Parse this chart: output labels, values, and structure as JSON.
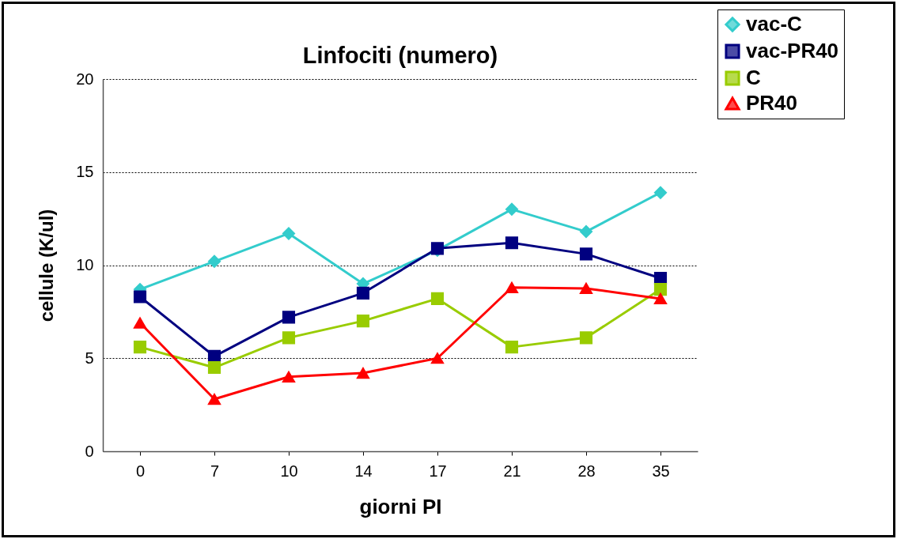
{
  "chart_data": {
    "type": "line",
    "title": "Linfociti (numero)",
    "xlabel": "giorni PI",
    "ylabel": "cellule (K/ul)",
    "categories": [
      "0",
      "7",
      "10",
      "14",
      "17",
      "21",
      "28",
      "35"
    ],
    "ylim": [
      0,
      20
    ],
    "yticks": [
      0,
      5,
      10,
      15,
      20
    ],
    "grid": "y",
    "legend": "top right",
    "series": [
      {
        "name": "vac-C",
        "color": "#33cccc",
        "marker": "diamond",
        "values": [
          8.7,
          10.2,
          11.7,
          9.0,
          10.8,
          13.0,
          11.8,
          13.9
        ]
      },
      {
        "name": "vac-PR40",
        "color": "#000080",
        "marker": "square",
        "values": [
          8.3,
          5.1,
          7.2,
          8.5,
          10.9,
          11.2,
          10.6,
          9.3
        ]
      },
      {
        "name": "C",
        "color": "#99cc00",
        "marker": "square",
        "values": [
          5.6,
          4.5,
          6.1,
          7.0,
          8.2,
          5.6,
          6.1,
          8.7
        ]
      },
      {
        "name": "PR40",
        "color": "#ff0000",
        "marker": "triangle",
        "values": [
          6.9,
          2.8,
          4.0,
          4.2,
          5.0,
          8.8,
          8.75,
          8.2
        ]
      }
    ]
  }
}
